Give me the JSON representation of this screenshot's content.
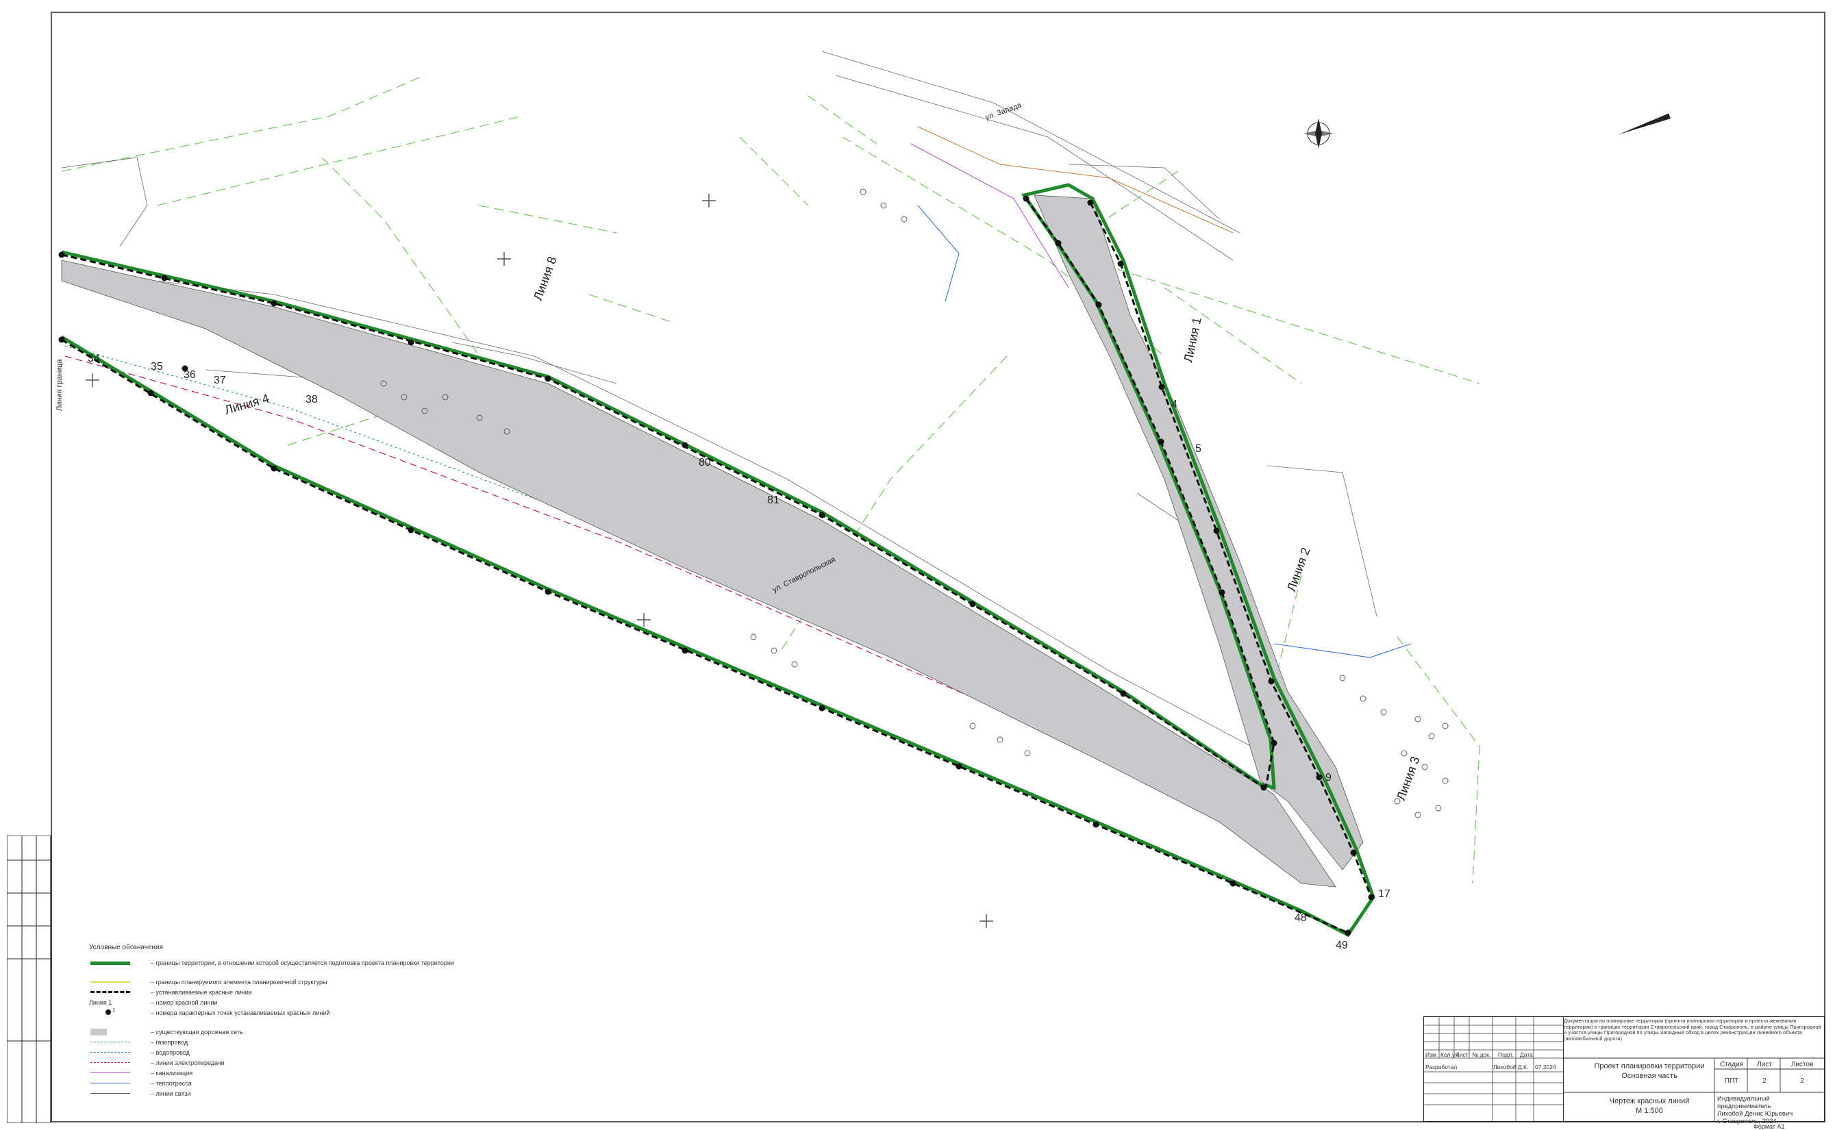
{
  "sheet": {
    "format": "Формат А1"
  },
  "colors": {
    "boundary_green": "#1e8a2a",
    "green_text": "#6dbb58",
    "road_fill": "#c9c9cb",
    "red_line": "#111111",
    "gas": "#2d9f5a",
    "power": "#c2185b",
    "sewer": "#b455c9",
    "heat": "#3b6fd6"
  },
  "labels": {
    "line1": "Линия 1",
    "line2": "Линия 2",
    "line3": "Линия 3",
    "line4": "Линия 4",
    "line8": "Линия 8",
    "line_vert": "Линия граница",
    "street_a": "ул. Запада",
    "street_b": "ул. Ставропольская",
    "point_numbers": [
      "34",
      "35",
      "36",
      "37",
      "38",
      "4",
      "5",
      "9",
      "17",
      "48",
      "49",
      "80",
      "81"
    ]
  },
  "legend": {
    "title": "Условные обозначения",
    "items": [
      {
        "symbol": "boundary",
        "label": "– границы территории, в отношении которой осуществляется подготовка проекта планировки территории"
      },
      {
        "symbol": "element",
        "label": "– границы планируемого элемента планировочной структуры"
      },
      {
        "symbol": "redline",
        "label": "– устанавливаемые красные линии"
      },
      {
        "symbol": "linenum",
        "label": "– номер красной линии",
        "sample": "Линия 1"
      },
      {
        "symbol": "point",
        "label": "– номера характерных точек устанавливаемых красных линий",
        "sample": "1"
      },
      {
        "symbol": "road",
        "label": "– существующая дорожная сеть"
      },
      {
        "symbol": "gas",
        "label": "– газопровод"
      },
      {
        "symbol": "water",
        "label": "– водопровод"
      },
      {
        "symbol": "power",
        "label": "– линии электропередачи"
      },
      {
        "symbol": "sewer",
        "label": "– канализация"
      },
      {
        "symbol": "heat",
        "label": "– теплотрасса"
      },
      {
        "symbol": "comm",
        "label": "– линии связи"
      }
    ]
  },
  "stamp": {
    "description": "Документация по планировке территории (проекта планировки территории и проекта межевания территории) в границах территории Ставропольский край, город Ставрополь, в районе улицы Пригородной и участка улицы Пригородной по улицы Западный обход в целях реконструкции линейного объекта (автомобильной дороги)",
    "hdr": [
      "Изм.",
      "Кол.уч.",
      "Лист",
      "№ док.",
      "Подп.",
      "Дата"
    ],
    "developer_role": "Разработал",
    "developer_name": "Лихобой Д.К.",
    "developer_date": "07.2024",
    "project_title": "Проект планировки территории",
    "project_subtitle": "Основная часть",
    "sheet_title": "Чертеж красных линий",
    "scale": "М 1:500",
    "col_stage": "Стадия",
    "col_sheet": "Лист",
    "col_sheets": "Листов",
    "stage": "ППТ",
    "sheet_no": "2",
    "sheets_total": "2",
    "org_line1": "Индивидуальный предприниматель",
    "org_line2": "Лихобой Денис Юрьевич",
    "org_line3": "г. Ставрополь, 2024"
  }
}
